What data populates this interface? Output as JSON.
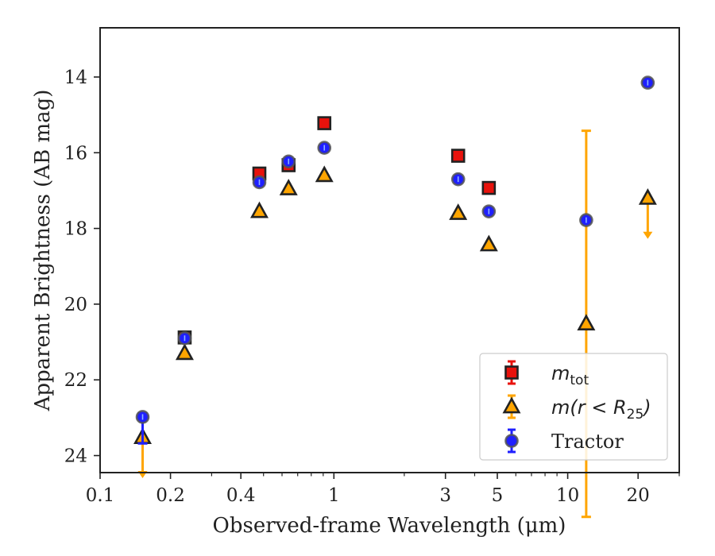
{
  "chart_data": {
    "type": "scatter",
    "title": "",
    "xlabel": "Observed-frame Wavelength (μm)",
    "ylabel": "Apparent Brightness (AB mag)",
    "xscale": "log",
    "xlim": [
      0.1,
      30
    ],
    "ylim": [
      24.45,
      12.7
    ],
    "y_inverted": true,
    "x_ticks": [
      {
        "value": 0.1,
        "label": "0.1"
      },
      {
        "value": 0.2,
        "label": "0.2"
      },
      {
        "value": 0.4,
        "label": "0.4"
      },
      {
        "value": 1,
        "label": "1"
      },
      {
        "value": 3,
        "label": "3"
      },
      {
        "value": 5,
        "label": "5"
      },
      {
        "value": 10,
        "label": "10"
      },
      {
        "value": 20,
        "label": "20"
      }
    ],
    "x_minor_ticks": [
      0.3,
      0.5,
      0.6,
      0.7,
      0.8,
      0.9,
      2,
      4,
      6,
      7,
      8,
      9,
      30
    ],
    "y_ticks": [
      {
        "value": 14,
        "label": "14"
      },
      {
        "value": 16,
        "label": "16"
      },
      {
        "value": 18,
        "label": "18"
      },
      {
        "value": 20,
        "label": "20"
      },
      {
        "value": 22,
        "label": "22"
      },
      {
        "value": 24,
        "label": "24"
      }
    ],
    "grid": false,
    "legend_position": "lower-right",
    "series": [
      {
        "name": "m_tot",
        "legend_main": "m",
        "legend_sub": "tot",
        "marker": "square",
        "color": "#e8120c",
        "edgecolor": "#222222",
        "errcolor": "#e8120c",
        "points": [
          {
            "x": 0.23,
            "y": 20.88
          },
          {
            "x": 0.48,
            "y": 16.55
          },
          {
            "x": 0.64,
            "y": 16.33
          },
          {
            "x": 0.91,
            "y": 15.22
          },
          {
            "x": 3.4,
            "y": 16.08
          },
          {
            "x": 4.6,
            "y": 16.93
          }
        ]
      },
      {
        "name": "m(r < R25)",
        "legend_main": "m(r < R",
        "legend_sub": "25",
        "legend_tail": ")",
        "marker": "triangle",
        "color": "#ffa500",
        "edgecolor": "#222222",
        "errcolor": "#ffa500",
        "points": [
          {
            "x": 0.152,
            "y": 23.52,
            "upper_limit": true
          },
          {
            "x": 0.23,
            "y": 21.3
          },
          {
            "x": 0.48,
            "y": 17.55
          },
          {
            "x": 0.64,
            "y": 16.95
          },
          {
            "x": 0.91,
            "y": 16.6
          },
          {
            "x": 3.4,
            "y": 17.6
          },
          {
            "x": 4.6,
            "y": 18.43
          },
          {
            "x": 12.0,
            "y": 20.52,
            "yerr_low": 5.1,
            "yerr_high": 5.1
          },
          {
            "x": 22.0,
            "y": 17.2,
            "upper_limit": true
          }
        ]
      },
      {
        "name": "Tractor",
        "legend_main": "Tractor",
        "marker": "circle",
        "color": "#1f1fff",
        "edgecolor": "#555555",
        "errcolor": "#1f1fff",
        "points": [
          {
            "x": 0.152,
            "y": 22.98,
            "yerr_low": 0.7,
            "yerr_high": 0.1
          },
          {
            "x": 0.23,
            "y": 20.9
          },
          {
            "x": 0.48,
            "y": 16.78
          },
          {
            "x": 0.64,
            "y": 16.23
          },
          {
            "x": 0.91,
            "y": 15.87
          },
          {
            "x": 3.4,
            "y": 16.7
          },
          {
            "x": 4.6,
            "y": 17.55
          },
          {
            "x": 12.0,
            "y": 17.78
          },
          {
            "x": 22.0,
            "y": 14.15
          }
        ]
      }
    ]
  }
}
